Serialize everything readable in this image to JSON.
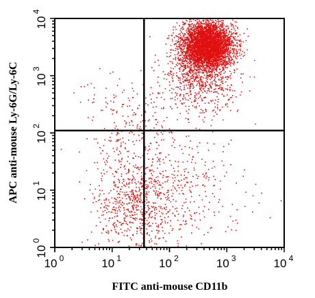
{
  "chart_data": {
    "type": "scatter",
    "title": "",
    "xlabel": "FITC anti-mouse CD11b",
    "ylabel": "APC anti-mouse Ly-6G/Ly-6C",
    "x_scale": "log",
    "y_scale": "log",
    "xlim": [
      1,
      10000
    ],
    "ylim": [
      1,
      10000
    ],
    "x_ticks": [
      {
        "base": "10",
        "exp": "0"
      },
      {
        "base": "10",
        "exp": "1"
      },
      {
        "base": "10",
        "exp": "2"
      },
      {
        "base": "10",
        "exp": "3"
      },
      {
        "base": "10",
        "exp": "4"
      }
    ],
    "y_ticks": [
      {
        "base": "10",
        "exp": "0"
      },
      {
        "base": "10",
        "exp": "1"
      },
      {
        "base": "10",
        "exp": "2"
      },
      {
        "base": "10",
        "exp": "3"
      },
      {
        "base": "10",
        "exp": "4"
      }
    ],
    "gate": {
      "x": 36,
      "y": 110
    },
    "point_color": "#e01010",
    "gate_color": "#000000",
    "grid": false,
    "legend": "none",
    "populations": [
      {
        "name": "",
        "center_x": 450,
        "center_y": 3500,
        "spread_log_x": 0.22,
        "spread_log_y": 0.2,
        "count": 4200
      },
      {
        "name": "",
        "center_x": 350,
        "center_y": 900,
        "spread_log_x": 0.3,
        "spread_log_y": 0.3,
        "count": 700
      },
      {
        "name": "",
        "center_x": 25,
        "center_y": 6,
        "spread_log_x": 0.35,
        "spread_log_y": 0.4,
        "count": 650
      },
      {
        "name": "",
        "center_x": 20,
        "center_y": 120,
        "spread_log_x": 0.45,
        "spread_log_y": 0.45,
        "count": 250
      },
      {
        "name": "",
        "center_x": 150,
        "center_y": 10,
        "spread_log_x": 0.6,
        "spread_log_y": 0.5,
        "count": 300
      }
    ]
  }
}
